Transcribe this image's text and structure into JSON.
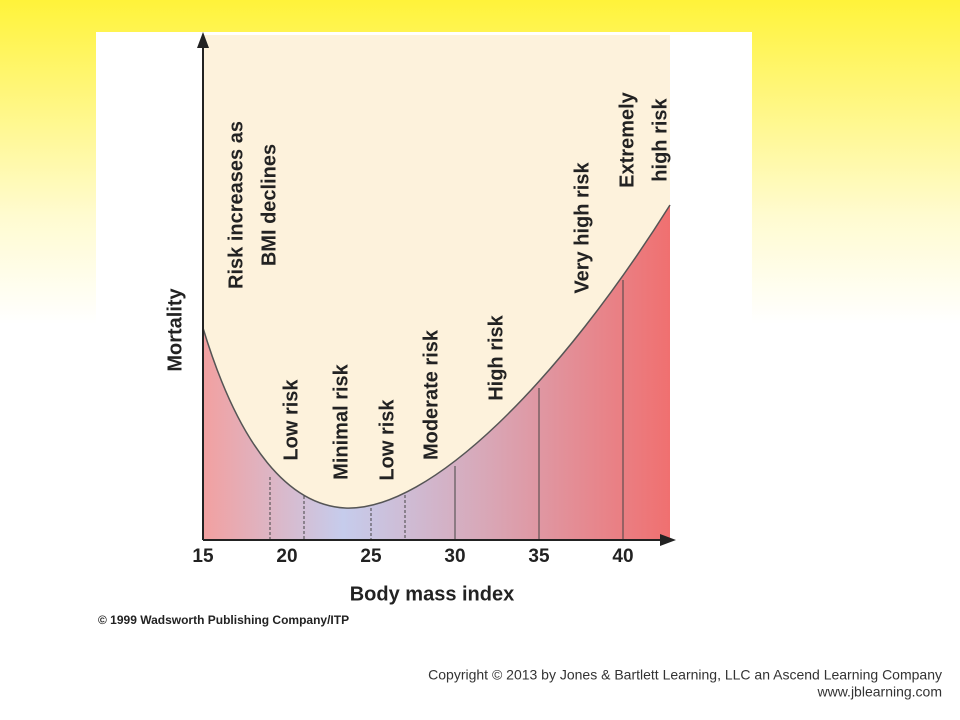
{
  "figure": {
    "y_axis_label": "Mortality",
    "x_axis_label": "Body mass index",
    "x_ticks": [
      15,
      20,
      25,
      30,
      35,
      40
    ],
    "zones": [
      {
        "lines": [
          "Risk increases as",
          "BMI declines"
        ]
      },
      {
        "lines": [
          "Low risk"
        ]
      },
      {
        "lines": [
          "Minimal risk"
        ]
      },
      {
        "lines": [
          "Low risk"
        ]
      },
      {
        "lines": [
          "Moderate risk"
        ]
      },
      {
        "lines": [
          "High risk"
        ]
      },
      {
        "lines": [
          "Very high risk"
        ]
      },
      {
        "lines": [
          "Extremely",
          "high risk"
        ]
      }
    ],
    "credit": "© 1999 Wadsworth Publishing Company/ITP"
  },
  "footer": {
    "copyright": "Copyright © 2013 by Jones & Bartlett Learning, LLC an Ascend Learning Company",
    "url": "www.jblearning.com"
  }
}
